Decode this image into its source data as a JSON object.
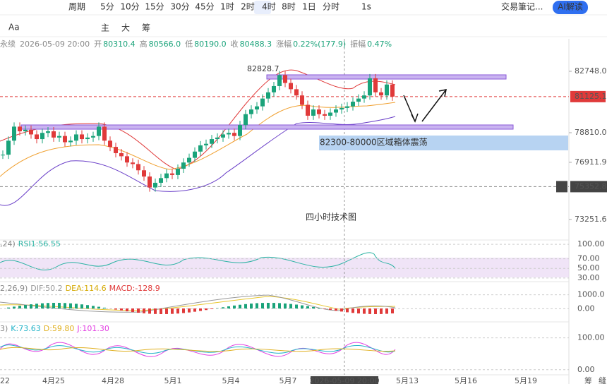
{
  "toolbar": {
    "period": "周期",
    "intervals": [
      "5分",
      "10分",
      "15分",
      "30分",
      "45分",
      "1时",
      "2时",
      "4时",
      "8时",
      "1日",
      "分时"
    ],
    "active": "4时",
    "second": "1s",
    "notes": "交易筆记...",
    "ai": "AI解读"
  },
  "toolbar2": {
    "font": "Aa",
    "modes": [
      "主",
      "大",
      "筹"
    ]
  },
  "info": {
    "symbol": "永续",
    "time": "2026-05-09 20:00",
    "fields": [
      {
        "label": "开",
        "value": "80310.4"
      },
      {
        "label": "高",
        "value": "80566.0"
      },
      {
        "label": "低",
        "value": "80190.0"
      },
      {
        "label": "收",
        "value": "80488.3"
      },
      {
        "label": "涨幅",
        "value": "0.22%(177.9)"
      },
      {
        "label": "振幅",
        "value": "0.47%"
      }
    ]
  },
  "chart_data": [
    {
      "type": "candlestick",
      "ylim": [
        71931,
        84830
      ],
      "yticks": [
        {
          "value": 82748,
          "label": "82748.0"
        },
        {
          "value": 78810,
          "label": "78810.0"
        },
        {
          "value": 76911.9,
          "label": "76911.9"
        },
        {
          "value": 73251.6,
          "label": "73251.6"
        }
      ],
      "last_price": {
        "value": 81125.1,
        "label": "81125.1"
      },
      "marker_price": {
        "value": 75352.8,
        "label": "75352.8"
      },
      "peak_label": "82828.7",
      "box_note": "82300-80000区域箱体震荡",
      "title": "四小时技术图",
      "values": [
        77400,
        78300,
        79200,
        78900,
        79000,
        78700,
        78400,
        78800,
        78900,
        78500,
        78600,
        78200,
        78300,
        78700,
        78400,
        78500,
        78600,
        79200,
        78300,
        77900,
        77500,
        77300,
        76900,
        76800,
        76400,
        76000,
        75300,
        75600,
        75900,
        76200,
        76100,
        76500,
        76900,
        77200,
        77600,
        78000,
        78100,
        78400,
        78500,
        78700,
        78800,
        78600,
        79300,
        80000,
        80300,
        80500,
        81000,
        81400,
        81800,
        82500,
        82000,
        81600,
        81200,
        80600,
        79900,
        80300,
        80000,
        79900,
        80100,
        80300,
        80400,
        80500,
        80800,
        81000,
        81200,
        82300,
        81400,
        81200,
        81900,
        81125.1
      ],
      "x_labels": [
        "22",
        "4月25",
        "4月28",
        "5月1",
        "5月4",
        "5月7",
        "2026-05-09 20:00",
        "5月13",
        "5月16",
        "5月19"
      ]
    },
    {
      "type": "rsi",
      "params": ",24)",
      "label": "RSI1:56.55",
      "ylim": [
        22.5,
        108.9
      ],
      "yticks": [
        {
          "value": 100,
          "label": "100.00"
        },
        {
          "value": 70,
          "label": "70.00"
        },
        {
          "value": 50,
          "label": "50.00"
        },
        {
          "value": 30,
          "label": "30.00"
        }
      ]
    },
    {
      "type": "macd",
      "params": "2,26,9)",
      "labels": [
        "DIF:50.2",
        "DEA:114.6",
        "MACD:-128.9"
      ],
      "ylim": [
        -950,
        1950
      ],
      "yticks": [
        {
          "value": 1000,
          "label": "1000.0"
        },
        {
          "value": 0,
          "label": "0.00"
        }
      ]
    },
    {
      "type": "kdj",
      "params": "3)",
      "labels": [
        "K:73.63",
        "D:59.80",
        "J:101.30"
      ],
      "ylim": [
        -16,
        150
      ],
      "yticks": [
        {
          "value": 100,
          "label": "100.00"
        },
        {
          "value": 0,
          "label": "0.00"
        }
      ]
    }
  ],
  "corner": [
    "筹",
    "缝"
  ]
}
